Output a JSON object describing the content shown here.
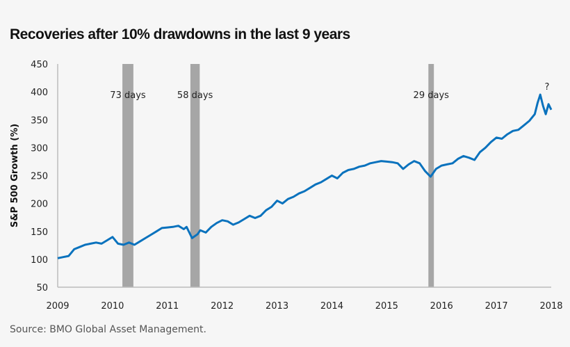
{
  "title": "Recoveries after 10% drawdowns in the last 9 years",
  "source": "Source: BMO Global Asset Management.",
  "chart_data": {
    "type": "line",
    "title": "Recoveries after 10% drawdowns in the last 9 years",
    "xlabel": "",
    "ylabel": "S&P 500 Growth (%)",
    "xlim": [
      2009,
      2018
    ],
    "ylim": [
      50,
      450
    ],
    "xticks": [
      "2009",
      "2010",
      "2011",
      "2012",
      "2013",
      "2014",
      "2015",
      "2016",
      "2017",
      "2018"
    ],
    "yticks": [
      "50",
      "100",
      "150",
      "200",
      "250",
      "300",
      "350",
      "400",
      "450"
    ],
    "grid": false,
    "line_color": "#0a72bd",
    "band_color": "#a6a6a6",
    "bands": [
      {
        "start": 2010.18,
        "end": 2010.38,
        "label": "73 days"
      },
      {
        "start": 2011.42,
        "end": 2011.59,
        "label": "58 days"
      },
      {
        "start": 2015.76,
        "end": 2015.86,
        "label": "29 days"
      }
    ],
    "annotation": "?",
    "x": [
      2009.0,
      2009.1,
      2009.2,
      2009.3,
      2009.4,
      2009.5,
      2009.6,
      2009.7,
      2009.8,
      2009.9,
      2010.0,
      2010.1,
      2010.2,
      2010.3,
      2010.4,
      2010.5,
      2010.6,
      2010.7,
      2010.8,
      2010.9,
      2011.0,
      2011.1,
      2011.2,
      2011.3,
      2011.35,
      2011.45,
      2011.55,
      2011.6,
      2011.7,
      2011.8,
      2011.9,
      2012.0,
      2012.1,
      2012.2,
      2012.3,
      2012.4,
      2012.5,
      2012.6,
      2012.7,
      2012.8,
      2012.9,
      2013.0,
      2013.1,
      2013.2,
      2013.3,
      2013.4,
      2013.5,
      2013.6,
      2013.7,
      2013.8,
      2013.9,
      2014.0,
      2014.1,
      2014.2,
      2014.3,
      2014.4,
      2014.5,
      2014.6,
      2014.7,
      2014.8,
      2014.9,
      2015.0,
      2015.1,
      2015.2,
      2015.3,
      2015.4,
      2015.5,
      2015.6,
      2015.7,
      2015.8,
      2015.9,
      2016.0,
      2016.1,
      2016.2,
      2016.3,
      2016.4,
      2016.5,
      2016.6,
      2016.7,
      2016.8,
      2016.9,
      2017.0,
      2017.1,
      2017.2,
      2017.3,
      2017.4,
      2017.5,
      2017.6,
      2017.7,
      2017.75,
      2017.8,
      2017.85,
      2017.9,
      2017.95,
      2018.0
    ],
    "y": [
      102,
      104,
      106,
      118,
      122,
      126,
      128,
      130,
      128,
      134,
      140,
      128,
      126,
      130,
      126,
      132,
      138,
      144,
      150,
      156,
      157,
      158,
      160,
      154,
      158,
      138,
      145,
      152,
      148,
      158,
      165,
      170,
      168,
      162,
      166,
      172,
      178,
      174,
      178,
      188,
      194,
      205,
      200,
      208,
      212,
      218,
      222,
      228,
      234,
      238,
      244,
      250,
      245,
      255,
      260,
      262,
      266,
      268,
      272,
      274,
      276,
      275,
      274,
      272,
      262,
      270,
      276,
      272,
      258,
      248,
      262,
      268,
      270,
      272,
      280,
      285,
      282,
      278,
      292,
      300,
      310,
      318,
      316,
      324,
      330,
      332,
      340,
      348,
      360,
      380,
      395,
      375,
      360,
      378,
      368
    ]
  }
}
